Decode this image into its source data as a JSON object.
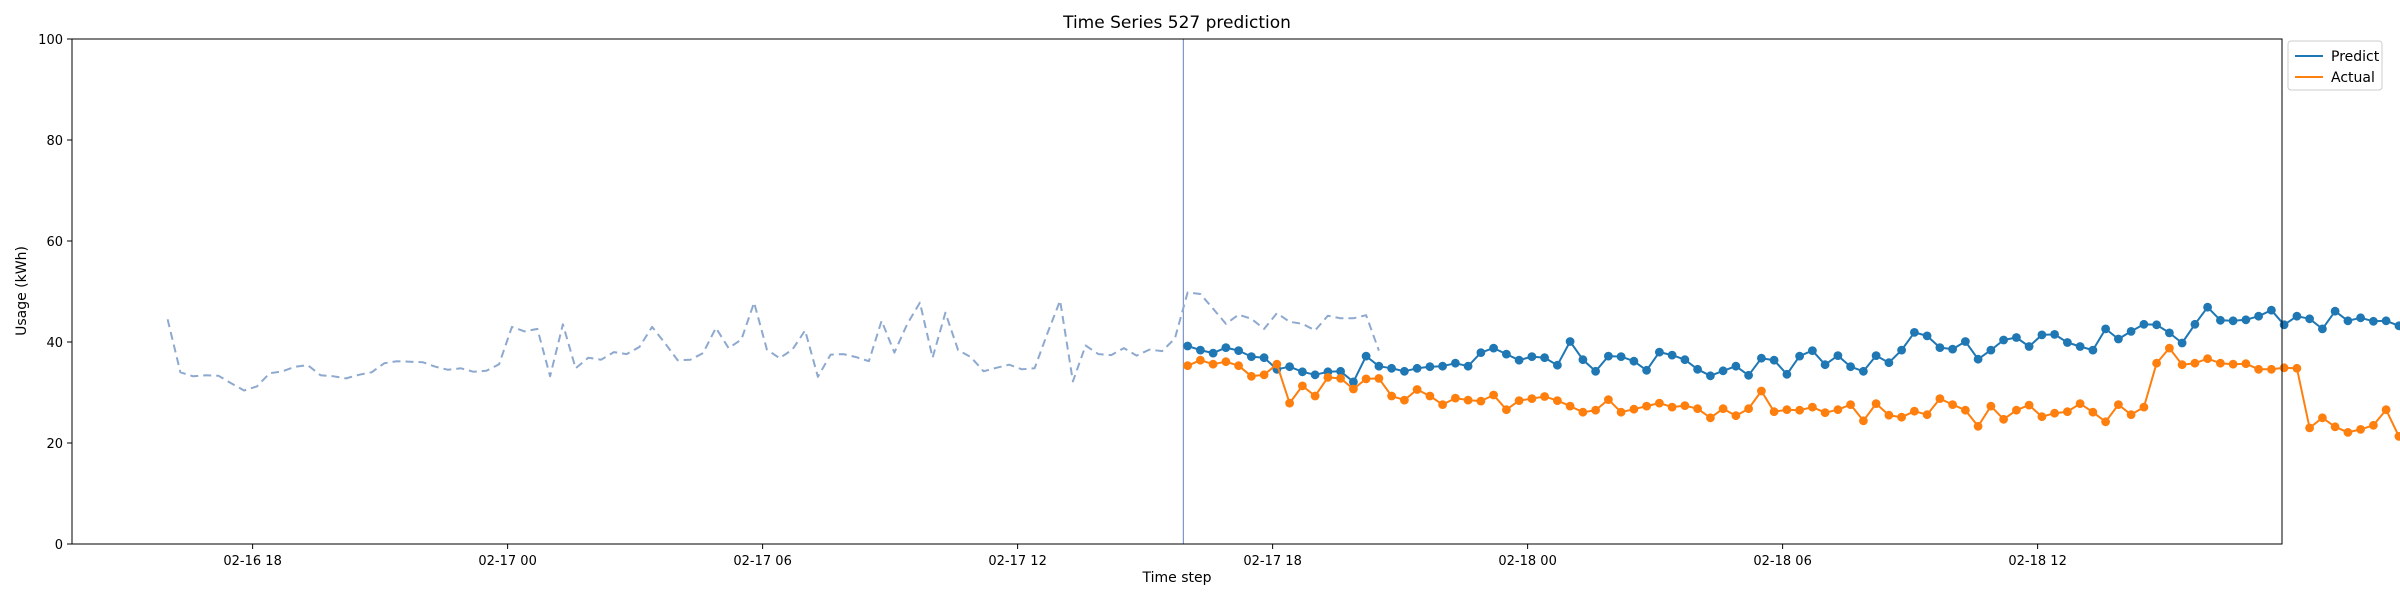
{
  "chart_data": {
    "type": "line",
    "title": "Time Series 527 prediction",
    "xlabel": "Time step",
    "ylabel": "Usage (kWh)",
    "ylim": [
      0,
      100
    ],
    "yticks": [
      0,
      20,
      40,
      60,
      80,
      100
    ],
    "xticks": [
      {
        "label": "02-16 18",
        "t": 18
      },
      {
        "label": "02-17 00",
        "t": 24
      },
      {
        "label": "02-17 06",
        "t": 30
      },
      {
        "label": "02-17 12",
        "t": 36
      },
      {
        "label": "02-17 18",
        "t": 42
      },
      {
        "label": "02-18 00",
        "t": 48
      },
      {
        "label": "02-18 06",
        "t": 54
      },
      {
        "label": "02-18 12",
        "t": 60
      }
    ],
    "xlim_hours": [
      13.75,
      65.75
    ],
    "forecast_start_hour": 39.9,
    "legend": {
      "position": "top-right (outside)"
    },
    "history": {
      "style": "dashed",
      "color": "#8ea9cf",
      "start_hour": 16.0,
      "step_hours": 0.3,
      "values": [
        44.5,
        34,
        33.2,
        33.4,
        33.3,
        31.8,
        30.4,
        31.2,
        33.8,
        34.2,
        35.1,
        35.4,
        33.4,
        33.2,
        32.8,
        33.5,
        34,
        35.8,
        36.2,
        36.1,
        36,
        35.1,
        34.5,
        34.8,
        34.1,
        34.3,
        35.6,
        43,
        42.1,
        42.6,
        33.2,
        43.5,
        34.8,
        36.9,
        36.5,
        38,
        37.6,
        39,
        43,
        39.8,
        36.4,
        36.5,
        37.8,
        42.8,
        38.8,
        40.5,
        47.8,
        38.5,
        36.8,
        38.5,
        42.3,
        33.1,
        37.5,
        37.6,
        37,
        36.2,
        44.2,
        37.9,
        43.5,
        47.8,
        36.9,
        45.8,
        38.4,
        37,
        34.2,
        34.9,
        35.5,
        34.6,
        34.8,
        41.7,
        48.2,
        32.2,
        39.3,
        37.6,
        37.4,
        38.8,
        37.3,
        38.5,
        38.2,
        40.7,
        49.8,
        49.5,
        46.6,
        43.6,
        45.4,
        44.6,
        42.6,
        45.7,
        44,
        43.6,
        42.3,
        45.2,
        44.7,
        44.7,
        45.3,
        38.3
      ]
    },
    "series": [
      {
        "name": "Predict",
        "color": "#1f77b4",
        "start_hour": 40.0,
        "step_hours": 0.3,
        "values": [
          39.2,
          38.4,
          37.8,
          38.9,
          38.3,
          37.1,
          36.9,
          34.6,
          35.1,
          34.1,
          33.5,
          34.1,
          34.2,
          32.1,
          37.2,
          35.2,
          34.8,
          34.2,
          34.8,
          35.1,
          35.2,
          35.8,
          35.2,
          37.9,
          38.8,
          37.6,
          36.4,
          37.1,
          36.9,
          35.4,
          40.1,
          36.5,
          34.2,
          37.2,
          37.1,
          36.2,
          34.4,
          38,
          37.4,
          36.5,
          34.6,
          33.3,
          34.3,
          35.2,
          33.4,
          36.8,
          36.4,
          33.6,
          37.2,
          38.3,
          35.5,
          37.3,
          35.1,
          34.2,
          37.3,
          35.9,
          38.4,
          41.9,
          41.2,
          38.9,
          38.6,
          40.1,
          36.6,
          38.4,
          40.4,
          40.9,
          39.1,
          41.4,
          41.5,
          39.9,
          39.1,
          38.4,
          42.6,
          40.6,
          42.1,
          43.5,
          43.4,
          41.8,
          39.8,
          43.5,
          46.9,
          44.3,
          44.2,
          44.4,
          45.1,
          46.3,
          43.4,
          45.1,
          44.6,
          42.6,
          46.1,
          44.2,
          44.8,
          44.1,
          44.2,
          43.2
        ]
      },
      {
        "name": "Actual",
        "color": "#ff7f0e",
        "start_hour": 40.0,
        "step_hours": 0.3,
        "values": [
          35.3,
          36.4,
          35.6,
          36.1,
          35.3,
          33.2,
          33.5,
          35.6,
          27.9,
          31.3,
          29.3,
          33,
          32.8,
          30.7,
          32.7,
          32.8,
          29.3,
          28.5,
          30.6,
          29.3,
          27.6,
          28.9,
          28.5,
          28.3,
          29.5,
          26.6,
          28.4,
          28.8,
          29.2,
          28.4,
          27.3,
          26.1,
          26.5,
          28.6,
          26.1,
          26.7,
          27.3,
          27.9,
          27.1,
          27.4,
          26.8,
          25,
          26.8,
          25.4,
          26.8,
          30.3,
          26.2,
          26.6,
          26.5,
          27.1,
          26,
          26.6,
          27.6,
          24.4,
          27.8,
          25.5,
          25.1,
          26.3,
          25.6,
          28.8,
          27.6,
          26.5,
          23.3,
          27.3,
          24.7,
          26.5,
          27.5,
          25.2,
          25.9,
          26.2,
          27.8,
          26.1,
          24.2,
          27.6,
          25.6,
          27.1,
          35.8,
          38.8,
          35.5,
          35.8,
          36.7,
          35.8,
          35.6,
          35.7,
          34.6,
          34.6,
          34.9,
          34.8,
          23,
          25,
          23.2,
          22.1,
          22.7,
          23.5,
          26.6,
          21.3
        ]
      }
    ]
  }
}
